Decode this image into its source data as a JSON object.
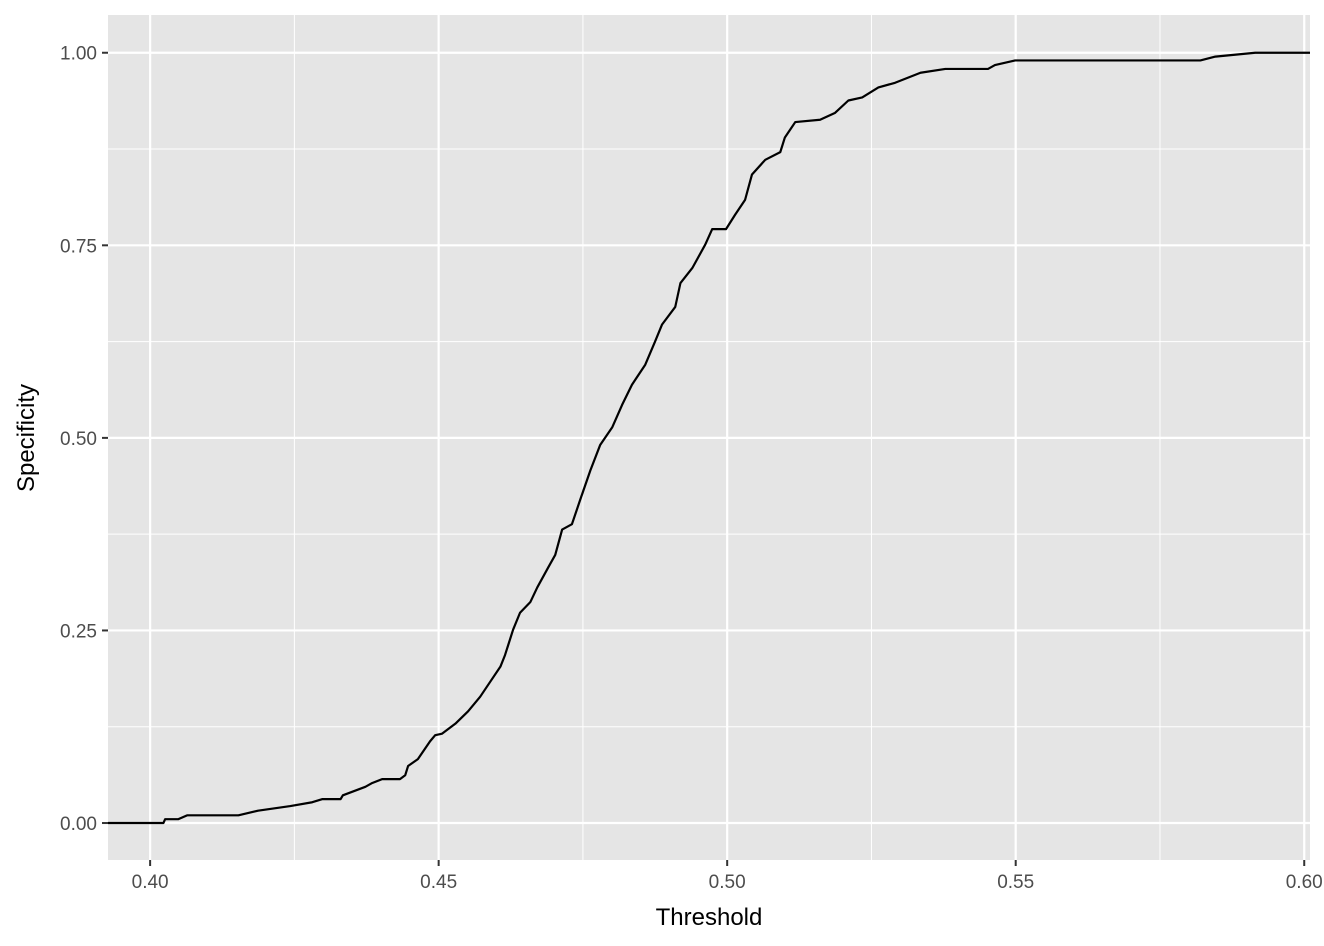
{
  "chart_data": {
    "type": "line",
    "x_label": "Threshold",
    "y_label": "Specificity",
    "x": [
      0.3927,
      0.4023,
      0.4026,
      0.4049,
      0.4064,
      0.4153,
      0.4187,
      0.4243,
      0.4281,
      0.4298,
      0.433,
      0.4334,
      0.4373,
      0.4385,
      0.4402,
      0.4433,
      0.4442,
      0.4447,
      0.4464,
      0.4485,
      0.4494,
      0.4506,
      0.4529,
      0.4551,
      0.4572,
      0.4589,
      0.4607,
      0.4615,
      0.4629,
      0.4641,
      0.4659,
      0.4671,
      0.469,
      0.4702,
      0.4714,
      0.4731,
      0.4745,
      0.4763,
      0.478,
      0.4801,
      0.4818,
      0.4835,
      0.4858,
      0.4875,
      0.4887,
      0.491,
      0.4919,
      0.494,
      0.4962,
      0.4974,
      0.4998,
      0.5014,
      0.5031,
      0.5043,
      0.5066,
      0.5092,
      0.51,
      0.5118,
      0.5161,
      0.5187,
      0.521,
      0.5234,
      0.5262,
      0.5291,
      0.5335,
      0.5378,
      0.5452,
      0.5464,
      0.5499,
      0.582,
      0.5846,
      0.5915,
      0.601
    ],
    "series": [
      {
        "color": "#000000",
        "values": [
          0,
          0,
          0.005,
          0.005,
          0.01,
          0.01,
          0.016,
          0.022,
          0.027,
          0.031,
          0.031,
          0.036,
          0.047,
          0.052,
          0.057,
          0.057,
          0.062,
          0.074,
          0.083,
          0.106,
          0.114,
          0.116,
          0.129,
          0.145,
          0.164,
          0.183,
          0.203,
          0.218,
          0.251,
          0.273,
          0.287,
          0.306,
          0.332,
          0.348,
          0.381,
          0.388,
          0.419,
          0.458,
          0.491,
          0.514,
          0.543,
          0.569,
          0.595,
          0.625,
          0.647,
          0.67,
          0.701,
          0.721,
          0.751,
          0.771,
          0.771,
          0.79,
          0.809,
          0.842,
          0.861,
          0.871,
          0.89,
          0.91,
          0.913,
          0.922,
          0.938,
          0.942,
          0.955,
          0.961,
          0.974,
          0.979,
          0.979,
          0.984,
          0.99,
          0.99,
          0.995,
          1.0,
          1.0
        ]
      }
    ],
    "xlim": [
      0.3927,
      0.601
    ],
    "ylim": [
      -0.048,
      1.049
    ],
    "xticks": [
      {
        "value": 0.4,
        "label": "0.40"
      },
      {
        "value": 0.45,
        "label": "0.45"
      },
      {
        "value": 0.5,
        "label": "0.50"
      },
      {
        "value": 0.55,
        "label": "0.55"
      },
      {
        "value": 0.6,
        "label": "0.60"
      }
    ],
    "yticks": [
      {
        "value": 0,
        "label": "0.00"
      },
      {
        "value": 0.25,
        "label": "0.25"
      },
      {
        "value": 0.5,
        "label": "0.50"
      },
      {
        "value": 0.75,
        "label": "0.75"
      },
      {
        "value": 1,
        "label": "1.00"
      }
    ],
    "grid": true
  }
}
